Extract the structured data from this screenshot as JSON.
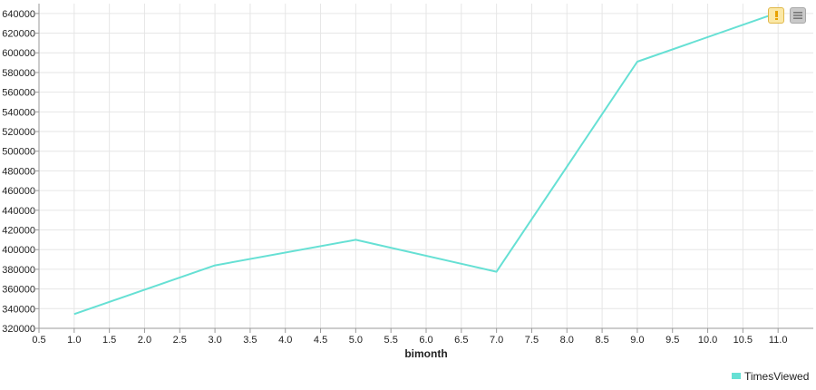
{
  "chart_data": {
    "type": "line",
    "xlabel": "bimonth",
    "ylabel": "",
    "xlim": [
      0.5,
      11.5
    ],
    "ylim": [
      320000,
      650000
    ],
    "x_ticks": [
      "0.5",
      "1.0",
      "1.5",
      "2.0",
      "2.5",
      "3.0",
      "3.5",
      "4.0",
      "4.5",
      "5.0",
      "5.5",
      "6.0",
      "6.5",
      "7.0",
      "7.5",
      "8.0",
      "8.5",
      "9.0",
      "9.5",
      "10.0",
      "10.5",
      "11.0"
    ],
    "y_ticks": [
      "320000",
      "340000",
      "360000",
      "380000",
      "400000",
      "420000",
      "440000",
      "460000",
      "480000",
      "500000",
      "520000",
      "540000",
      "560000",
      "580000",
      "600000",
      "620000",
      "640000"
    ],
    "grid": true,
    "legend_position": "bottom-right",
    "series": [
      {
        "name": "TimesViewed",
        "color": "#66e0d4",
        "x": [
          1,
          3,
          5,
          7,
          9,
          11
        ],
        "y": [
          334500,
          384000,
          410000,
          377500,
          591000,
          641000
        ]
      }
    ]
  },
  "toolbar": {
    "warning_icon": "warning-icon",
    "menu_icon": "hamburger-menu-icon",
    "warning_color": "#e8a200",
    "menu_color": "#777777"
  }
}
